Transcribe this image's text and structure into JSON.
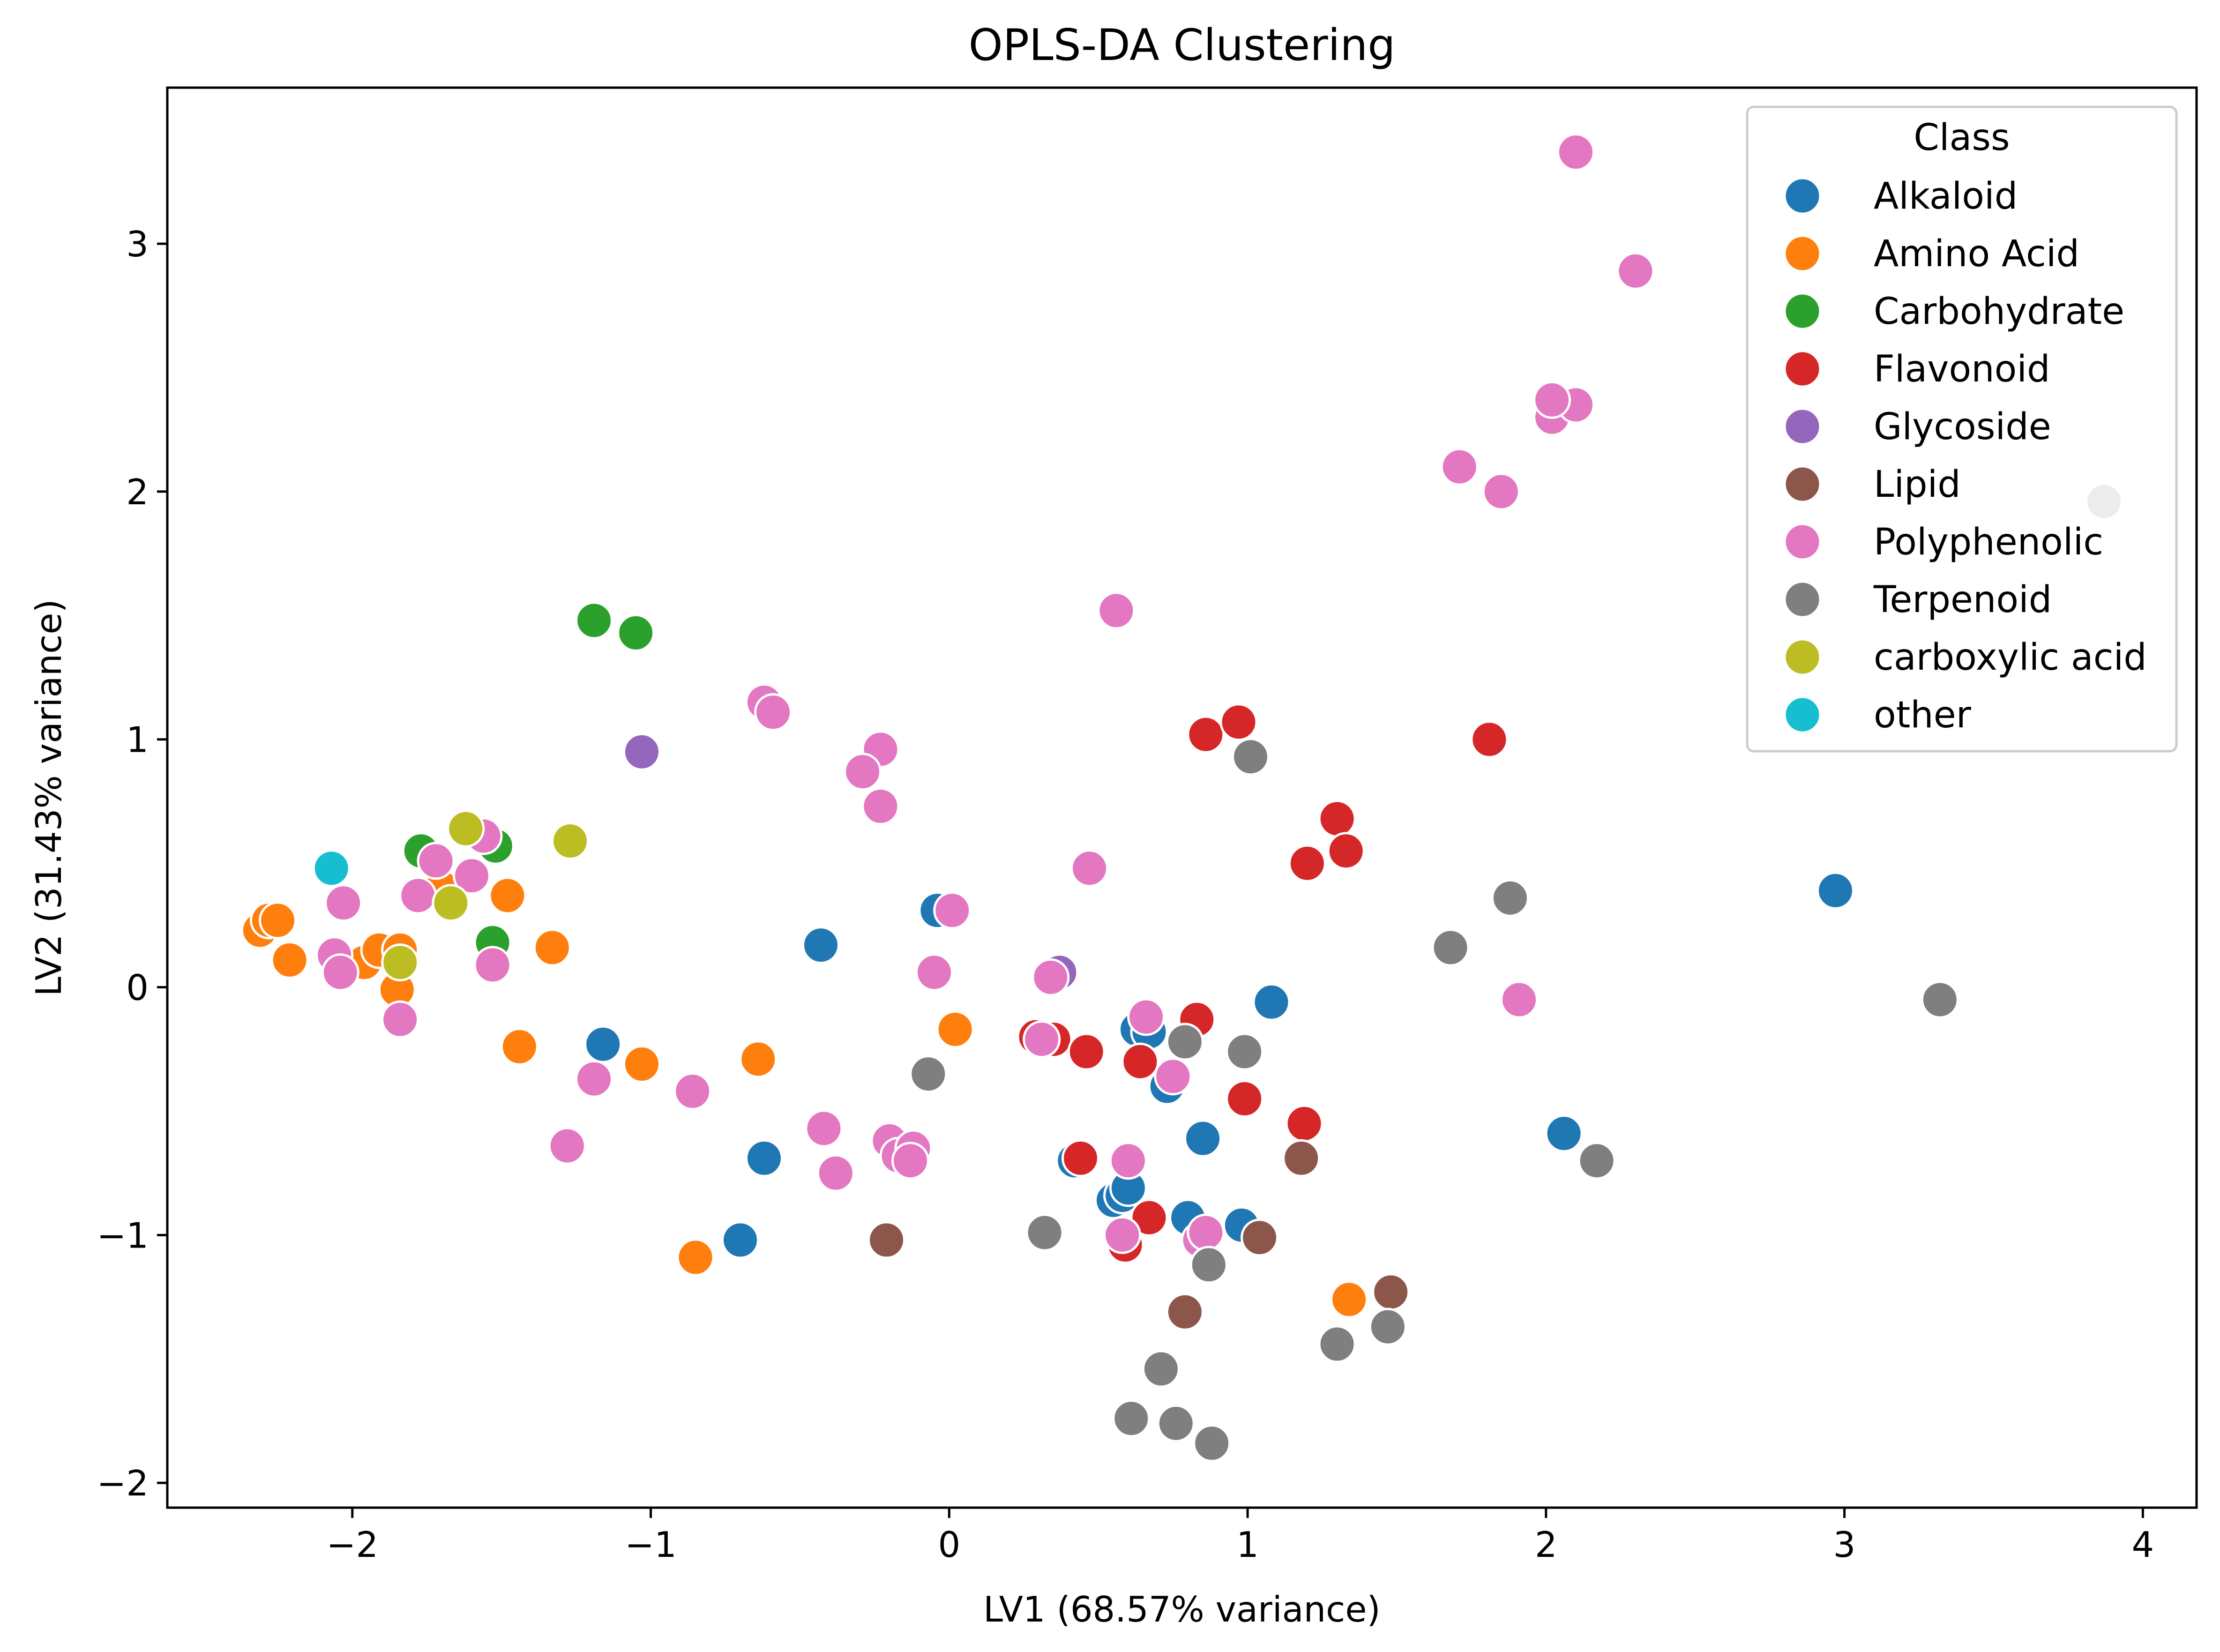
{
  "chart_data": {
    "type": "scatter",
    "title": "OPLS-DA Clustering",
    "xlabel": "LV1 (68.57% variance)",
    "ylabel": "LV2 (31.43% variance)",
    "xlim": [
      -2.62,
      4.18
    ],
    "ylim": [
      -2.1,
      3.63
    ],
    "xticks": [
      -2,
      -1,
      0,
      1,
      2,
      3,
      4
    ],
    "yticks": [
      -2,
      -1,
      0,
      1,
      2,
      3
    ],
    "xtick_labels": [
      "−2",
      "−1",
      "0",
      "1",
      "2",
      "3",
      "4"
    ],
    "ytick_labels": [
      "−2",
      "−1",
      "0",
      "1",
      "2",
      "3"
    ],
    "grid": false,
    "legend": {
      "title": "Class",
      "placement": "upper right"
    },
    "series": [
      {
        "name": "Alkaloid",
        "color": "#1f77b4",
        "points": [
          [
            -1.16,
            -0.23
          ],
          [
            -0.62,
            -0.69
          ],
          [
            -0.7,
            -1.02
          ],
          [
            -0.43,
            0.17
          ],
          [
            -0.04,
            0.31
          ],
          [
            0.42,
            -0.7
          ],
          [
            0.55,
            -0.86
          ],
          [
            0.58,
            -0.84
          ],
          [
            0.6,
            -0.81
          ],
          [
            0.63,
            -0.17
          ],
          [
            0.67,
            -0.18
          ],
          [
            0.73,
            -0.4
          ],
          [
            0.8,
            -0.93
          ],
          [
            0.85,
            -0.61
          ],
          [
            0.98,
            -0.96
          ],
          [
            1.08,
            -0.06
          ],
          [
            2.06,
            -0.59
          ],
          [
            2.97,
            0.39
          ]
        ]
      },
      {
        "name": "Amino Acid",
        "color": "#ff7f0e",
        "points": [
          [
            -2.31,
            0.23
          ],
          [
            -2.28,
            0.27
          ],
          [
            -2.25,
            0.27
          ],
          [
            -2.21,
            0.11
          ],
          [
            -1.96,
            0.1
          ],
          [
            -1.91,
            0.15
          ],
          [
            -1.84,
            0.15
          ],
          [
            -1.85,
            -0.01
          ],
          [
            -1.7,
            0.4
          ],
          [
            -1.48,
            0.37
          ],
          [
            -1.33,
            0.16
          ],
          [
            -1.44,
            -0.24
          ],
          [
            -1.03,
            -0.31
          ],
          [
            -0.64,
            -0.29
          ],
          [
            0.02,
            -0.17
          ],
          [
            -0.85,
            -1.09
          ],
          [
            1.34,
            -1.26
          ]
        ]
      },
      {
        "name": "Carbohydrate",
        "color": "#2ca02c",
        "points": [
          [
            -1.19,
            1.48
          ],
          [
            -1.05,
            1.43
          ],
          [
            -1.77,
            0.55
          ],
          [
            -1.52,
            0.57
          ],
          [
            -1.53,
            0.18
          ]
        ]
      },
      {
        "name": "Flavonoid",
        "color": "#d62728",
        "points": [
          [
            0.86,
            1.02
          ],
          [
            0.97,
            1.07
          ],
          [
            1.81,
            1.0
          ],
          [
            1.3,
            0.68
          ],
          [
            1.2,
            0.5
          ],
          [
            1.33,
            0.55
          ],
          [
            0.29,
            -0.2
          ],
          [
            0.35,
            -0.21
          ],
          [
            0.46,
            -0.26
          ],
          [
            0.64,
            -0.3
          ],
          [
            0.83,
            -0.13
          ],
          [
            0.99,
            -0.45
          ],
          [
            1.19,
            -0.55
          ],
          [
            0.44,
            -0.69
          ],
          [
            0.67,
            -0.93
          ],
          [
            0.59,
            -1.04
          ]
        ]
      },
      {
        "name": "Glycoside",
        "color": "#9467bd",
        "points": [
          [
            -1.03,
            0.95
          ],
          [
            0.37,
            0.06
          ]
        ]
      },
      {
        "name": "Lipid",
        "color": "#8c564b",
        "points": [
          [
            -0.21,
            -1.02
          ],
          [
            0.79,
            -1.31
          ],
          [
            1.04,
            -1.01
          ],
          [
            1.18,
            -0.69
          ],
          [
            1.48,
            -1.23
          ]
        ]
      },
      {
        "name": "Polyphenolic",
        "color": "#e377c2",
        "points": [
          [
            2.1,
            3.37
          ],
          [
            2.3,
            2.89
          ],
          [
            2.02,
            2.3
          ],
          [
            2.1,
            2.35
          ],
          [
            2.02,
            2.37
          ],
          [
            1.71,
            2.1
          ],
          [
            1.85,
            2.0
          ],
          [
            0.56,
            1.52
          ],
          [
            -0.62,
            1.15
          ],
          [
            -0.59,
            1.11
          ],
          [
            -0.23,
            0.96
          ],
          [
            -0.29,
            0.87
          ],
          [
            -0.23,
            0.73
          ],
          [
            0.47,
            0.48
          ],
          [
            0.01,
            0.31
          ],
          [
            -0.05,
            0.06
          ],
          [
            0.34,
            0.04
          ],
          [
            0.66,
            -0.12
          ],
          [
            0.31,
            -0.21
          ],
          [
            0.75,
            -0.36
          ],
          [
            0.6,
            -0.7
          ],
          [
            -0.42,
            -0.57
          ],
          [
            -0.38,
            -0.75
          ],
          [
            -0.2,
            -0.62
          ],
          [
            -0.17,
            -0.68
          ],
          [
            -0.12,
            -0.65
          ],
          [
            -0.13,
            -0.7
          ],
          [
            0.58,
            -1.0
          ],
          [
            0.84,
            -1.02
          ],
          [
            0.86,
            -0.99
          ],
          [
            1.91,
            -0.05
          ],
          [
            -1.56,
            0.61
          ],
          [
            -1.6,
            0.45
          ],
          [
            -1.72,
            0.51
          ],
          [
            -1.78,
            0.37
          ],
          [
            -2.03,
            0.34
          ],
          [
            -2.06,
            0.13
          ],
          [
            -2.04,
            0.06
          ],
          [
            -1.53,
            0.09
          ],
          [
            -1.84,
            -0.13
          ],
          [
            -1.19,
            -0.37
          ],
          [
            -0.86,
            -0.42
          ],
          [
            -1.28,
            -0.64
          ]
        ]
      },
      {
        "name": "Terpenoid",
        "color": "#7f7f7f",
        "points": [
          [
            3.87,
            1.96
          ],
          [
            3.32,
            -0.05
          ],
          [
            1.88,
            0.36
          ],
          [
            1.68,
            0.16
          ],
          [
            1.01,
            0.93
          ],
          [
            2.17,
            -0.7
          ],
          [
            0.79,
            -0.22
          ],
          [
            0.99,
            -0.26
          ],
          [
            -0.07,
            -0.35
          ],
          [
            0.32,
            -0.99
          ],
          [
            0.87,
            -1.12
          ],
          [
            1.3,
            -1.44
          ],
          [
            1.47,
            -1.37
          ],
          [
            0.71,
            -1.54
          ],
          [
            0.61,
            -1.74
          ],
          [
            0.76,
            -1.76
          ],
          [
            0.88,
            -1.84
          ]
        ]
      },
      {
        "name": "carboxylic acid",
        "color": "#bcbd22",
        "points": [
          [
            -1.62,
            0.64
          ],
          [
            -1.67,
            0.34
          ],
          [
            -1.27,
            0.59
          ],
          [
            -1.84,
            0.1
          ]
        ]
      },
      {
        "name": "other",
        "color": "#17becf",
        "points": [
          [
            -2.07,
            0.48
          ]
        ]
      }
    ]
  }
}
